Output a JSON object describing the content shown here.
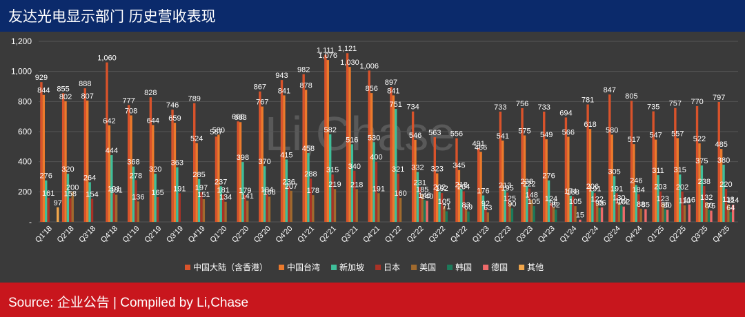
{
  "header": {
    "title": "友达光电显示部门 历史营收表现"
  },
  "footer": {
    "source": "Source: 企业公告 | Compiled by Li,Chase"
  },
  "watermark": "Li,Chase",
  "colors": {
    "header_bg": "#0b2a6b",
    "footer_bg": "#c8161d",
    "chart_bg": "#3a3a3a"
  },
  "chart_data": {
    "type": "bar",
    "title": "",
    "xlabel": "",
    "ylabel": "",
    "ylim": [
      0,
      1200
    ],
    "yticks": [
      "-",
      "200",
      "400",
      "600",
      "800",
      "1,000",
      "1,200"
    ],
    "grid": true,
    "legend_position": "bottom",
    "categories": [
      "Q1'18",
      "Q2'18",
      "Q3'18",
      "Q4'18",
      "Q1'19",
      "Q2'19",
      "Q3'19",
      "Q4'19",
      "Q1'20",
      "Q2'20",
      "Q3'20",
      "Q4'20",
      "Q1'21",
      "Q2'21",
      "Q3'21",
      "Q4'21",
      "Q1'22",
      "Q2'22",
      "Q3'22",
      "Q4'22",
      "Q1'23",
      "Q2'23",
      "Q3'23",
      "Q4'23",
      "Q1'24",
      "Q2'24",
      "Q3'24",
      "Q4'24",
      "Q1'25",
      "Q2'25",
      "Q3'25",
      "Q4'25"
    ],
    "series": [
      {
        "name": "中国大陆（含香港）",
        "color": "#d9532b",
        "values": [
          929,
          855,
          888,
          1060,
          777,
          828,
          746,
          789,
          567,
          668,
          867,
          943,
          982,
          1111,
          1121,
          1006,
          897,
          734,
          563,
          556,
          491,
          733,
          756,
          733,
          694,
          781,
          847,
          805,
          735,
          757,
          770,
          797
        ]
      },
      {
        "name": "中国台湾",
        "color": "#ec7a2c",
        "values": [
          844,
          802,
          807,
          642,
          708,
          644,
          659,
          524,
          580,
          663,
          767,
          841,
          878,
          1076,
          1030,
          856,
          841,
          546,
          323,
          345,
          466,
          541,
          575,
          549,
          566,
          618,
          580,
          517,
          547,
          557,
          522,
          485
        ]
      },
      {
        "name": "新加坡",
        "color": "#3fbf9a",
        "values": [
          276,
          320,
          264,
          444,
          368,
          320,
          363,
          285,
          237,
          398,
          370,
          415,
          458,
          582,
          516,
          530,
          751,
          332,
          202,
          218,
          176,
          213,
          238,
          276,
          174,
          206,
          305,
          246,
          311,
          315,
          375,
          380
        ]
      },
      {
        "name": "日本",
        "color": "#a83226",
        "values": [
          161,
          158,
          154,
          191,
          278,
          165,
          191,
          197,
          181,
          179,
          184,
          236,
          288,
          315,
          340,
          400,
          321,
          231,
          192,
          204,
          92,
          195,
          222,
          124,
          168,
          191,
          191,
          184,
          203,
          202,
          238,
          220
        ]
      },
      {
        "name": "美国",
        "color": "#a06a2e",
        "values": [
          null,
          200,
          null,
          181,
          136,
          null,
          null,
          151,
          134,
          141,
          168,
          207,
          178,
          219,
          218,
          191,
          160,
          185,
          105,
          83,
          63,
          125,
          148,
          96,
          105,
          122,
          130,
          88,
          123,
          110,
          132,
          118
        ]
      },
      {
        "name": "韩国",
        "color": "#1c7a5a",
        "values": [
          null,
          null,
          null,
          null,
          null,
          null,
          null,
          null,
          null,
          null,
          null,
          null,
          null,
          null,
          null,
          null,
          null,
          146,
          71,
          69,
          null,
          90,
          105,
          82,
          null,
          93,
          110,
          null,
          85,
          null,
          80,
          64
        ]
      },
      {
        "name": "德国",
        "color": "#ef6a6a",
        "values": [
          null,
          null,
          null,
          null,
          null,
          null,
          null,
          null,
          null,
          null,
          null,
          null,
          null,
          null,
          null,
          null,
          null,
          140,
          null,
          null,
          null,
          null,
          null,
          null,
          15,
          96,
          102,
          85,
          80,
          116,
          75,
          114
        ]
      },
      {
        "name": "其他",
        "color": "#f2a74b",
        "values": [
          97,
          null,
          null,
          null,
          null,
          null,
          null,
          null,
          null,
          null,
          null,
          null,
          null,
          null,
          null,
          null,
          null,
          null,
          null,
          null,
          null,
          null,
          null,
          null,
          null,
          null,
          null,
          null,
          null,
          null,
          null,
          null
        ]
      }
    ]
  }
}
